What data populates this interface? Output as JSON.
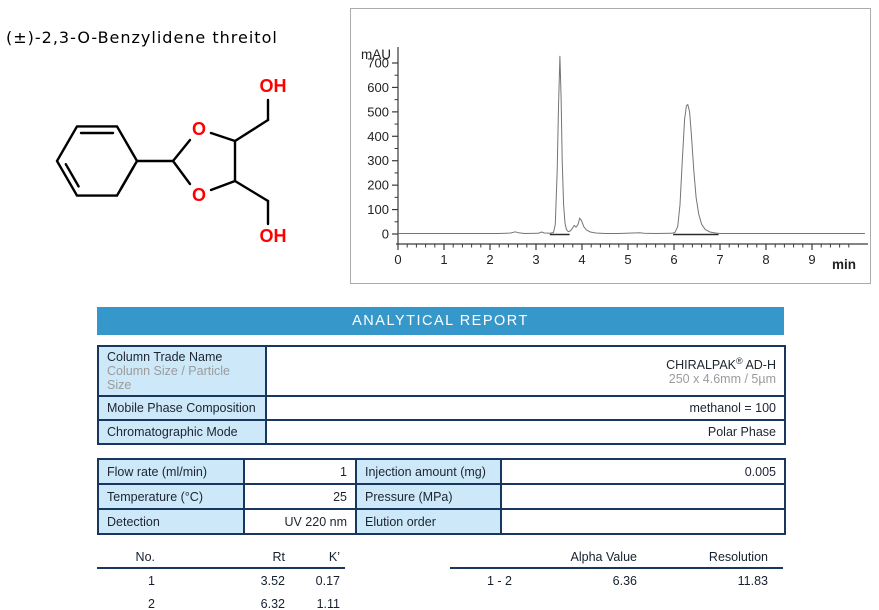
{
  "page": {
    "title": "(±)-2,3-O-Benzylidene threitol"
  },
  "structure": {
    "atom_color": "#ff0000",
    "atoms": {
      "o_top": "O",
      "o_bottom": "O",
      "oh_top": "OH",
      "oh_bottom": "OH"
    }
  },
  "chart_data": {
    "type": "line",
    "title": "",
    "xlabel": "min",
    "ylabel": "mAU",
    "xlim": [
      0,
      10.2
    ],
    "ylim": [
      -20,
      780
    ],
    "grid": false,
    "x_ticks": [
      0,
      1,
      2,
      3,
      4,
      5,
      6,
      7,
      8,
      9
    ],
    "y_ticks": [
      0,
      100,
      200,
      300,
      400,
      500,
      600,
      700
    ],
    "peaks": [
      {
        "rt": 3.52,
        "height_mau": 728
      },
      {
        "rt": 3.95,
        "height_mau": 65
      },
      {
        "rt": 6.32,
        "height_mau": 530
      }
    ],
    "integration_marks": [
      [
        3.3,
        3.73
      ],
      [
        5.98,
        6.97
      ]
    ],
    "trace": [
      [
        0,
        2
      ],
      [
        1.0,
        2
      ],
      [
        2.2,
        2
      ],
      [
        2.45,
        4
      ],
      [
        2.55,
        9
      ],
      [
        2.62,
        5
      ],
      [
        2.75,
        2
      ],
      [
        3.05,
        3
      ],
      [
        3.12,
        8
      ],
      [
        3.18,
        4
      ],
      [
        3.3,
        3
      ],
      [
        3.38,
        6
      ],
      [
        3.42,
        40
      ],
      [
        3.46,
        260
      ],
      [
        3.49,
        520
      ],
      [
        3.52,
        728
      ],
      [
        3.545,
        560
      ],
      [
        3.57,
        300
      ],
      [
        3.6,
        120
      ],
      [
        3.63,
        45
      ],
      [
        3.66,
        18
      ],
      [
        3.7,
        10
      ],
      [
        3.74,
        12
      ],
      [
        3.78,
        20
      ],
      [
        3.83,
        35
      ],
      [
        3.87,
        28
      ],
      [
        3.91,
        38
      ],
      [
        3.95,
        65
      ],
      [
        3.99,
        55
      ],
      [
        4.04,
        30
      ],
      [
        4.1,
        16
      ],
      [
        4.18,
        8
      ],
      [
        4.3,
        4
      ],
      [
        4.5,
        2
      ],
      [
        4.8,
        2
      ],
      [
        5.25,
        5
      ],
      [
        5.35,
        3
      ],
      [
        5.6,
        2
      ],
      [
        5.95,
        3
      ],
      [
        6.02,
        6
      ],
      [
        6.08,
        30
      ],
      [
        6.13,
        120
      ],
      [
        6.18,
        300
      ],
      [
        6.23,
        470
      ],
      [
        6.27,
        525
      ],
      [
        6.3,
        530
      ],
      [
        6.34,
        500
      ],
      [
        6.38,
        400
      ],
      [
        6.43,
        260
      ],
      [
        6.48,
        150
      ],
      [
        6.54,
        80
      ],
      [
        6.6,
        40
      ],
      [
        6.68,
        18
      ],
      [
        6.78,
        8
      ],
      [
        6.9,
        4
      ],
      [
        7.0,
        2
      ],
      [
        7.5,
        2
      ],
      [
        8.5,
        2
      ],
      [
        9.5,
        2
      ],
      [
        10.15,
        2
      ]
    ]
  },
  "report": {
    "header": "ANALYTICAL REPORT",
    "accent_color": "#3697cb",
    "cell_fill": "#cde9f9",
    "border_color": "#17375e",
    "table1": {
      "rows": [
        {
          "label": "Column Trade Name",
          "sublabel": "Column Size / Particle Size",
          "value_main": "CHIRALPAK",
          "value_sup": "®",
          "value_rest": " AD-H",
          "subvalue": "250 x 4.6mm / 5µm"
        },
        {
          "label": "Mobile Phase Composition",
          "value": "methanol = 100"
        },
        {
          "label": "Chromatographic Mode",
          "value": "Polar Phase"
        }
      ]
    },
    "table2": {
      "rows": [
        {
          "label1": "Flow rate (ml/min)",
          "value1": "1",
          "label2": "Injection amount (mg)",
          "value2": "0.005"
        },
        {
          "label1": "Temperature (°C)",
          "value1": "25",
          "label2": "Pressure (MPa)",
          "value2": ""
        },
        {
          "label1": "Detection",
          "value1": "UV 220 nm",
          "label2": "Elution order",
          "value2": ""
        }
      ]
    },
    "peak_table": {
      "headers": [
        "No.",
        "Rt",
        "K’"
      ],
      "rows": [
        [
          "1",
          "3.52",
          "0.17"
        ],
        [
          "2",
          "6.32",
          "1.11"
        ]
      ]
    },
    "stats_table": {
      "headers": [
        "",
        "Alpha Value",
        "Resolution"
      ],
      "rows": [
        [
          "1 - 2",
          "6.36",
          "11.83"
        ]
      ]
    }
  }
}
